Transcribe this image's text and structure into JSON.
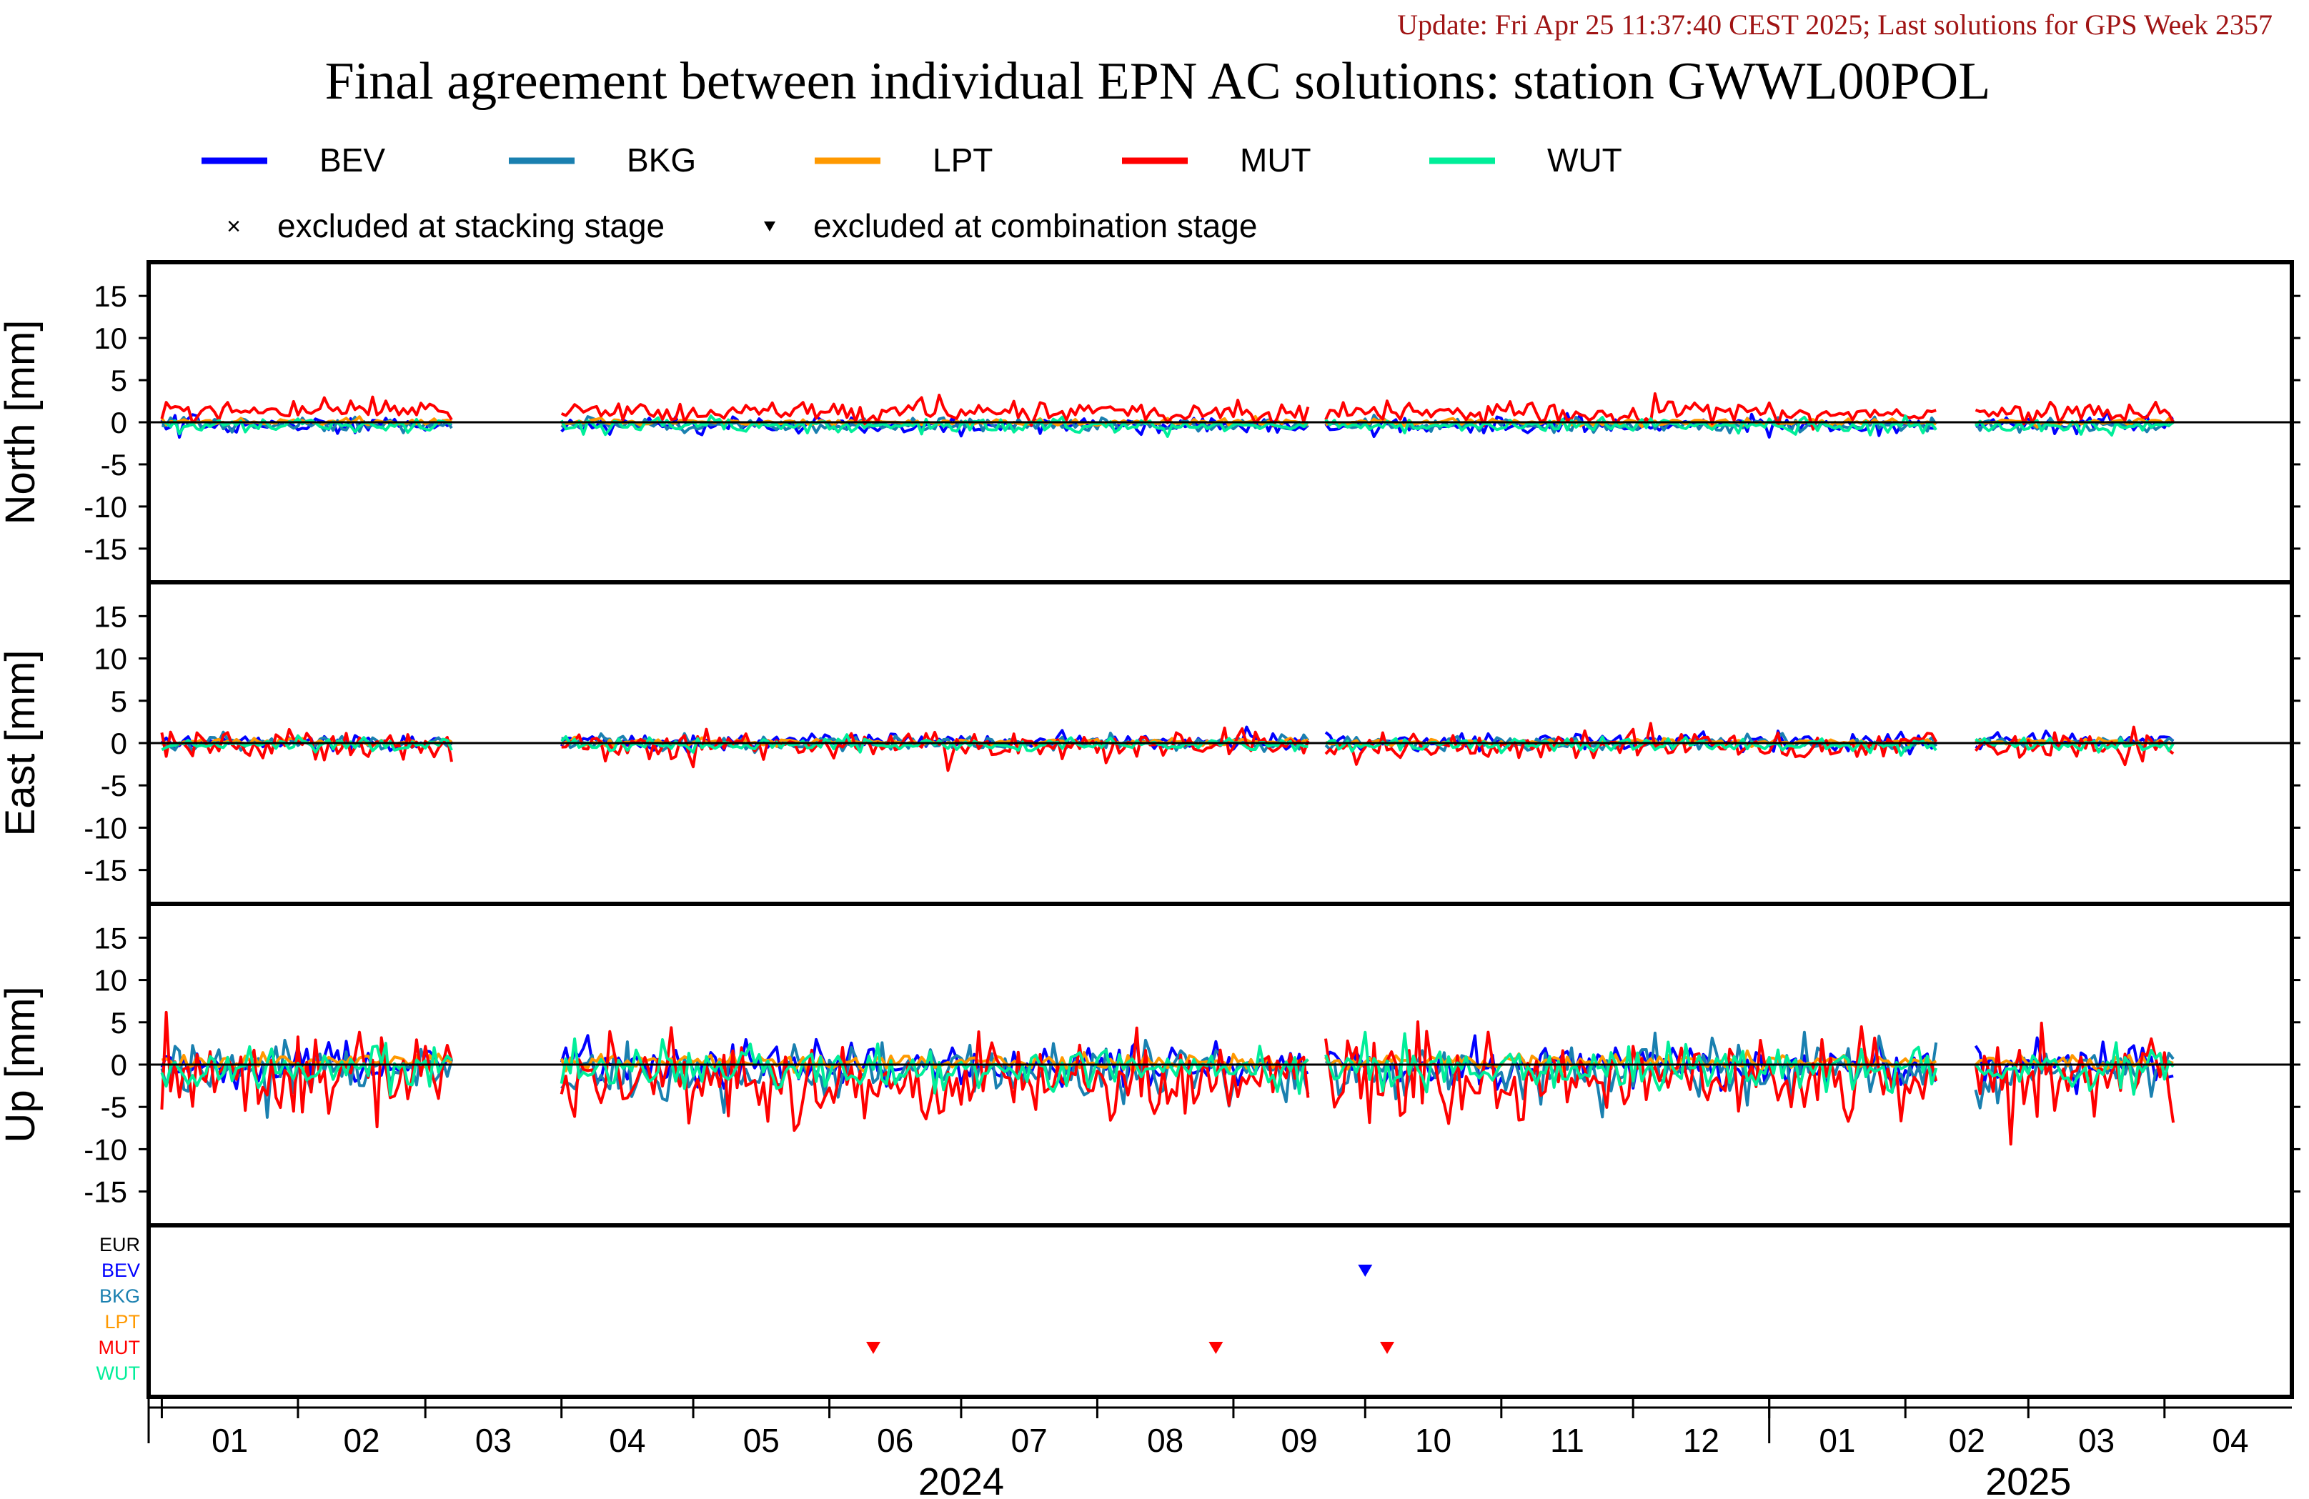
{
  "update_text": "Update: Fri Apr 25 11:37:40 CEST 2025; Last solutions for GPS Week 2357",
  "title": "Final agreement between individual EPN AC solutions: station GWWL00POL",
  "legend": {
    "series": [
      {
        "name": "BEV",
        "color": "#0000ff"
      },
      {
        "name": "BKG",
        "color": "#1a80b0"
      },
      {
        "name": "LPT",
        "color": "#ff9900"
      },
      {
        "name": "MUT",
        "color": "#ff0000"
      },
      {
        "name": "WUT",
        "color": "#00ee99"
      }
    ],
    "excluded_stacking": "excluded at stacking stage",
    "excluded_combination": "excluded at combination stage"
  },
  "chart_data": {
    "type": "line",
    "x_unit": "date",
    "x_range": [
      "2023-12-29",
      "2025-04-30"
    ],
    "panels": [
      {
        "ylabel": "North [mm]",
        "ylim": [
          -19,
          19
        ],
        "yticks": [
          15,
          10,
          5,
          0,
          -5,
          -10,
          -15
        ],
        "offsets": {
          "BEV": -0.3,
          "BKG": -0.3,
          "LPT": 0.0,
          "MUT": 1.2,
          "WUT": -0.4
        },
        "noise": {
          "BEV": 0.5,
          "BKG": 0.4,
          "LPT": 0.2,
          "MUT": 0.7,
          "WUT": 0.4
        }
      },
      {
        "ylabel": "East [mm]",
        "ylim": [
          -19,
          19
        ],
        "yticks": [
          15,
          10,
          5,
          0,
          -5,
          -10,
          -15
        ],
        "offsets": {
          "BEV": 0.2,
          "BKG": 0.0,
          "LPT": 0.1,
          "MUT": -0.3,
          "WUT": -0.2
        },
        "noise": {
          "BEV": 0.5,
          "BKG": 0.4,
          "LPT": 0.2,
          "MUT": 0.9,
          "WUT": 0.4
        }
      },
      {
        "ylabel": "Up [mm]",
        "ylim": [
          -19,
          19
        ],
        "yticks": [
          15,
          10,
          5,
          0,
          -5,
          -10,
          -15
        ],
        "offsets": {
          "BEV": 0.0,
          "BKG": -0.8,
          "LPT": 0.3,
          "MUT": -1.5,
          "WUT": -0.5
        },
        "noise": {
          "BEV": 1.2,
          "BKG": 1.6,
          "LPT": 0.5,
          "MUT": 2.6,
          "WUT": 1.2
        }
      }
    ],
    "data_periods": [
      [
        "2024-01-01",
        "2024-03-07"
      ],
      [
        "2024-04-01",
        "2024-09-18"
      ],
      [
        "2024-09-22",
        "2025-02-08"
      ],
      [
        "2025-02-17",
        "2025-04-03"
      ]
    ],
    "excluded_rows": [
      "EUR",
      "BEV",
      "BKG",
      "LPT",
      "MUT",
      "WUT"
    ],
    "excluded_combination_markers": [
      {
        "row": "BEV",
        "date": "2024-10-01"
      },
      {
        "row": "MUT",
        "date": "2024-06-11"
      },
      {
        "row": "MUT",
        "date": "2024-08-28"
      },
      {
        "row": "MUT",
        "date": "2024-10-06"
      }
    ],
    "x_tick_months": [
      "2024-01-01",
      "2024-02-01",
      "2024-03-01",
      "2024-04-01",
      "2024-05-01",
      "2024-06-01",
      "2024-07-01",
      "2024-08-01",
      "2024-09-01",
      "2024-10-01",
      "2024-11-01",
      "2024-12-01",
      "2025-01-01",
      "2025-02-01",
      "2025-03-01",
      "2025-04-01"
    ],
    "x_month_labels": [
      "01",
      "02",
      "03",
      "04",
      "05",
      "06",
      "07",
      "08",
      "09",
      "10",
      "11",
      "12",
      "01",
      "02",
      "03",
      "04"
    ],
    "x_year_labels": [
      {
        "label": "2024",
        "date": "2024-07-01"
      },
      {
        "label": "2025",
        "date": "2025-03-01"
      }
    ],
    "year_boundaries": [
      "2025-01-01"
    ]
  }
}
